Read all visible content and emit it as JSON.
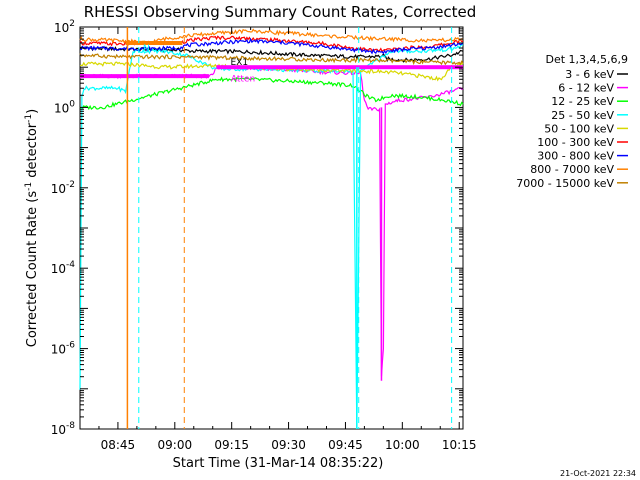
{
  "chart_data": {
    "type": "line",
    "title": "RHESSI Observing Summary Count Rates, Corrected",
    "xlabel": "Start Time (31-Mar-14 08:35:22)",
    "ylabel_main": "Corrected Count Rate (s",
    "ylabel_sup1": "-1",
    "ylabel_mid": " detector",
    "ylabel_sup2": "-1",
    "ylabel_end": ")",
    "y_scale": "log",
    "ylim_exp": [
      -8,
      2
    ],
    "xlim_min": [
      0,
      101
    ],
    "x_ticks": [
      {
        "min": 10,
        "label": "08:45"
      },
      {
        "min": 25,
        "label": "09:00"
      },
      {
        "min": 40,
        "label": "09:15"
      },
      {
        "min": 55,
        "label": "09:30"
      },
      {
        "min": 70,
        "label": "09:45"
      },
      {
        "min": 85,
        "label": "10:00"
      },
      {
        "min": 100,
        "label": "10:15"
      }
    ],
    "y_ticks": [
      {
        "exp": 2,
        "base": "10",
        "sup": "2"
      },
      {
        "exp": 0,
        "base": "10",
        "sup": "0"
      },
      {
        "exp": -2,
        "base": "10",
        "sup": "-2"
      },
      {
        "exp": -4,
        "base": "10",
        "sup": "-4"
      },
      {
        "exp": -6,
        "base": "10",
        "sup": "-6"
      },
      {
        "exp": -8,
        "base": "10",
        "sup": "-8"
      }
    ],
    "legend_title": "Det 1,3,4,5,6,9",
    "legend_position": "right",
    "series": [
      {
        "name": "3 - 6 keV",
        "color": "#000000",
        "points": [
          [
            0,
            30
          ],
          [
            12,
            28
          ],
          [
            22,
            27
          ],
          [
            26,
            27
          ],
          [
            30,
            25
          ],
          [
            36,
            25
          ],
          [
            45,
            24
          ],
          [
            55,
            21
          ],
          [
            65,
            19
          ],
          [
            75,
            18
          ],
          [
            80,
            19
          ],
          [
            81,
            16
          ],
          [
            86,
            15
          ],
          [
            92,
            16
          ],
          [
            98,
            20
          ],
          [
            101,
            25
          ]
        ]
      },
      {
        "name": "6 - 12 keV",
        "color": "#ff00ff",
        "points": [
          [
            0,
            6
          ],
          [
            35,
            6
          ],
          [
            36,
            10
          ],
          [
            45,
            9.5
          ],
          [
            55,
            8.5
          ],
          [
            65,
            7.5
          ],
          [
            74,
            7
          ],
          [
            75,
            1.5
          ],
          [
            76,
            0.9
          ],
          [
            79,
            0.9
          ],
          [
            79.5,
            2e-07
          ],
          [
            80,
            1e-06
          ],
          [
            80.5,
            1.2
          ],
          [
            84,
            1.5
          ],
          [
            92,
            1.8
          ],
          [
            98,
            2.5
          ],
          [
            101,
            3
          ]
        ]
      },
      {
        "name": "12 - 25 keV",
        "color": "#00ff00",
        "points": [
          [
            0,
            1
          ],
          [
            4,
            1
          ],
          [
            6,
            1
          ],
          [
            36,
            5
          ],
          [
            45,
            5
          ],
          [
            55,
            4.5
          ],
          [
            65,
            4
          ],
          [
            72,
            3.5
          ],
          [
            76,
            1.8
          ],
          [
            78,
            1.5
          ],
          [
            82,
            2
          ],
          [
            90,
            1.8
          ],
          [
            98,
            1.4
          ],
          [
            101,
            1.2
          ]
        ]
      },
      {
        "name": "25 - 50 keV",
        "color": "#00ffff",
        "points": [
          [
            0,
            1e-07
          ],
          [
            0.5,
            2
          ],
          [
            1,
            3
          ],
          [
            10,
            3
          ],
          [
            12,
            2.5
          ],
          [
            14,
            25
          ],
          [
            22,
            25
          ],
          [
            28,
            20
          ],
          [
            36,
            9
          ],
          [
            45,
            9
          ],
          [
            55,
            8.5
          ],
          [
            65,
            8
          ],
          [
            72,
            8
          ],
          [
            73,
            1e-08
          ],
          [
            74,
            8
          ],
          [
            82,
            25
          ],
          [
            90,
            25
          ],
          [
            98,
            28
          ],
          [
            101,
            35
          ]
        ]
      },
      {
        "name": "50 - 100 keV",
        "color": "#d8d800",
        "points": [
          [
            0,
            12
          ],
          [
            12,
            12
          ],
          [
            22,
            10
          ],
          [
            36,
            11
          ],
          [
            45,
            10
          ],
          [
            55,
            9
          ],
          [
            65,
            8.5
          ],
          [
            75,
            8
          ],
          [
            82,
            7.5
          ],
          [
            90,
            6
          ],
          [
            95,
            5
          ],
          [
            98,
            10
          ],
          [
            101,
            12
          ]
        ]
      },
      {
        "name": "100 - 300 keV",
        "color": "#ff0000",
        "points": [
          [
            0,
            40
          ],
          [
            10,
            38
          ],
          [
            20,
            40
          ],
          [
            26,
            40
          ],
          [
            28,
            45
          ],
          [
            36,
            55
          ],
          [
            45,
            52
          ],
          [
            55,
            45
          ],
          [
            65,
            38
          ],
          [
            72,
            30
          ],
          [
            76,
            27
          ],
          [
            80,
            26
          ],
          [
            86,
            30
          ],
          [
            92,
            32
          ],
          [
            98,
            40
          ],
          [
            101,
            45
          ]
        ]
      },
      {
        "name": "300 - 800 keV",
        "color": "#0000ff",
        "points": [
          [
            0,
            30
          ],
          [
            10,
            29
          ],
          [
            20,
            29
          ],
          [
            26,
            30
          ],
          [
            28,
            35
          ],
          [
            36,
            40
          ],
          [
            45,
            45
          ],
          [
            55,
            40
          ],
          [
            65,
            32
          ],
          [
            72,
            27
          ],
          [
            76,
            25
          ],
          [
            80,
            24
          ],
          [
            86,
            28
          ],
          [
            92,
            30
          ],
          [
            98,
            35
          ],
          [
            101,
            40
          ]
        ]
      },
      {
        "name": "800 - 7000 keV",
        "color": "#ff8000",
        "points": [
          [
            0,
            50
          ],
          [
            12,
            45
          ],
          [
            18,
            40
          ],
          [
            20,
            45
          ],
          [
            22,
            50
          ],
          [
            28,
            60
          ],
          [
            36,
            70
          ],
          [
            45,
            80
          ],
          [
            55,
            70
          ],
          [
            65,
            60
          ],
          [
            72,
            55
          ],
          [
            76,
            52
          ],
          [
            82,
            50
          ],
          [
            92,
            45
          ],
          [
            101,
            50
          ]
        ]
      },
      {
        "name": "7000 - 15000 keV",
        "color": "#c08000",
        "points": [
          [
            0,
            20
          ],
          [
            12,
            18
          ],
          [
            22,
            18
          ],
          [
            30,
            18
          ],
          [
            40,
            17
          ],
          [
            55,
            16
          ],
          [
            65,
            15
          ],
          [
            75,
            15
          ],
          [
            85,
            14
          ],
          [
            95,
            13
          ],
          [
            101,
            13
          ]
        ]
      }
    ],
    "dashed_markers": [
      {
        "x": 15.5,
        "color": "#00ffff"
      },
      {
        "x": 27.5,
        "color": "#ff8000"
      },
      {
        "x": 73.5,
        "color": "#00ffff"
      },
      {
        "x": 98,
        "color": "#00ffff"
      }
    ],
    "thick_bars": [
      {
        "x_start": 0,
        "x_end": 34,
        "y": 6,
        "color": "#ff00ff"
      },
      {
        "x_start": 36,
        "x_end": 101,
        "y": 10,
        "color": "#ff00ff"
      },
      {
        "x_start": 12,
        "x_end": 27,
        "y": 40,
        "color": "#ff8000"
      }
    ],
    "vertical_lines": [
      {
        "x": 12.5,
        "y_from_exp": 2,
        "y_to_exp": -8,
        "color": "#ff8000"
      },
      {
        "x": 73,
        "y_from_exp": 1,
        "y_to_exp": -8,
        "color": "#00ffff"
      },
      {
        "x": 79.5,
        "y_from_exp": 0,
        "y_to_exp": -6.8,
        "color": "#ff00ff"
      }
    ],
    "annotations": [
      {
        "text": "N",
        "x": 17.5,
        "y_exp": 1.4,
        "color": "#00ffff"
      },
      {
        "text": "Atten",
        "x": 43,
        "y_exp": 0.65,
        "color": "#ff00ff"
      },
      {
        "text": "EX1",
        "x": 42,
        "y_exp": 1.05,
        "color": "#000000"
      }
    ],
    "timestamp": "21-Oct-2021 22:34"
  }
}
